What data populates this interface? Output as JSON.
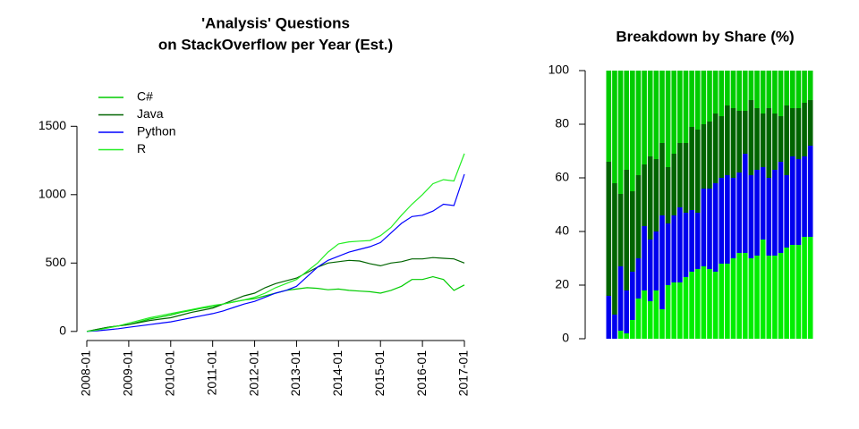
{
  "chart_data": [
    {
      "type": "line",
      "title": [
        "'Analysis' Questions",
        "on StackOverflow per Year (Est.)"
      ],
      "x": [
        "2008-01",
        "2008-04",
        "2008-07",
        "2008-10",
        "2009-01",
        "2009-04",
        "2009-07",
        "2009-10",
        "2010-01",
        "2010-04",
        "2010-07",
        "2010-10",
        "2011-01",
        "2011-04",
        "2011-07",
        "2011-10",
        "2012-01",
        "2012-04",
        "2012-07",
        "2012-10",
        "2013-01",
        "2013-04",
        "2013-07",
        "2013-10",
        "2014-01",
        "2014-04",
        "2014-07",
        "2014-10",
        "2015-01",
        "2015-04",
        "2015-07",
        "2015-10",
        "2016-01",
        "2016-04",
        "2016-07",
        "2016-10",
        "2017-01"
      ],
      "series": [
        {
          "name": "C#",
          "color": "#00cc00",
          "values": [
            0,
            15,
            30,
            40,
            50,
            70,
            90,
            105,
            120,
            140,
            155,
            170,
            180,
            200,
            215,
            230,
            240,
            260,
            280,
            300,
            310,
            320,
            315,
            305,
            310,
            300,
            295,
            290,
            280,
            300,
            330,
            380,
            380,
            400,
            380,
            300,
            340
          ]
        },
        {
          "name": "Java",
          "color": "#006400",
          "values": [
            0,
            15,
            30,
            40,
            50,
            65,
            80,
            90,
            100,
            120,
            140,
            155,
            170,
            200,
            230,
            260,
            280,
            320,
            350,
            370,
            390,
            430,
            470,
            500,
            510,
            520,
            515,
            495,
            480,
            500,
            510,
            530,
            530,
            540,
            535,
            530,
            500
          ]
        },
        {
          "name": "Python",
          "color": "#0000ff",
          "values": [
            0,
            5,
            12,
            20,
            30,
            40,
            50,
            60,
            70,
            85,
            100,
            115,
            130,
            150,
            175,
            200,
            220,
            250,
            280,
            300,
            330,
            400,
            470,
            520,
            550,
            580,
            600,
            620,
            650,
            720,
            790,
            840,
            850,
            880,
            930,
            920,
            1150
          ]
        },
        {
          "name": "R",
          "color": "#22ee22",
          "values": [
            0,
            10,
            25,
            40,
            60,
            80,
            100,
            115,
            130,
            145,
            160,
            175,
            190,
            200,
            215,
            230,
            250,
            280,
            320,
            350,
            380,
            440,
            500,
            580,
            640,
            655,
            660,
            665,
            700,
            760,
            850,
            930,
            1000,
            1080,
            1110,
            1100,
            1300
          ]
        }
      ],
      "xlim": [
        "2008-01",
        "2017-01"
      ],
      "xticks": [
        "2008-01",
        "2009-01",
        "2010-01",
        "2011-01",
        "2012-01",
        "2013-01",
        "2014-01",
        "2015-01",
        "2016-01",
        "2017-01"
      ],
      "ylim": [
        -60,
        1600
      ],
      "yticks": [
        0,
        500,
        1000,
        1500
      ],
      "legend": "top-left"
    },
    {
      "type": "stacked-bar",
      "title": "Breakdown by Share (%)",
      "categories": [
        null,
        null,
        null,
        null,
        null,
        null,
        null,
        null,
        null,
        null,
        null,
        null,
        null,
        null,
        null,
        null,
        null,
        null,
        null,
        null,
        null,
        null,
        null,
        null,
        null,
        null,
        null,
        null,
        null,
        null,
        null,
        null,
        null,
        null,
        null
      ],
      "series": [
        {
          "color": "#00ee00",
          "values": [
            0,
            0,
            3,
            2,
            7,
            15,
            18,
            14,
            18,
            11,
            20,
            21,
            21,
            23,
            25,
            26,
            27,
            26,
            25,
            28,
            28,
            30,
            32,
            32,
            30,
            31,
            37,
            31,
            31,
            32,
            34,
            35,
            35,
            38,
            38
          ]
        },
        {
          "color": "#0000ee",
          "values": [
            16,
            9,
            24,
            16,
            18,
            15,
            24,
            23,
            22,
            35,
            23,
            25,
            28,
            24,
            23,
            21,
            29,
            30,
            33,
            32,
            33,
            30,
            30,
            37,
            31,
            32,
            27,
            29,
            32,
            34,
            27,
            33,
            32,
            30,
            34
          ]
        },
        {
          "color": "#006400",
          "values": [
            50,
            49,
            27,
            45,
            30,
            31,
            23,
            31,
            27,
            27,
            21,
            23,
            24,
            26,
            31,
            31,
            24,
            25,
            26,
            23,
            26,
            26,
            23,
            16,
            28,
            23,
            20,
            26,
            21,
            17,
            26,
            18,
            19,
            20,
            17
          ]
        },
        {
          "color": "#00cc00",
          "values": [
            34,
            42,
            46,
            37,
            45,
            39,
            35,
            32,
            33,
            27,
            36,
            31,
            27,
            27,
            21,
            22,
            20,
            19,
            16,
            17,
            13,
            14,
            15,
            15,
            11,
            14,
            16,
            14,
            16,
            17,
            13,
            14,
            14,
            12,
            11
          ]
        }
      ],
      "ylim": [
        0,
        100
      ],
      "yticks": [
        0,
        20,
        40,
        60,
        80,
        100
      ]
    }
  ]
}
